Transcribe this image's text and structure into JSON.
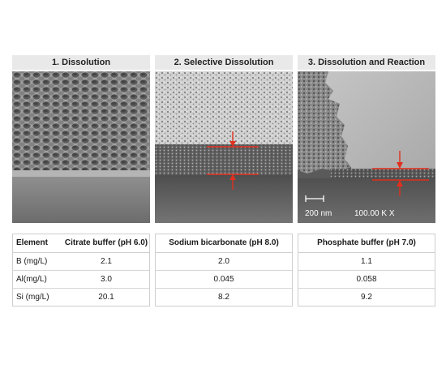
{
  "panels": [
    {
      "title": "1. Dissolution"
    },
    {
      "title": "2. Selective Dissolution"
    },
    {
      "title": "3. Dissolution and Reaction"
    }
  ],
  "scale": {
    "bar_label": "200 nm",
    "magnification": "100.00 K X"
  },
  "table": {
    "element_header": "Element",
    "columns": [
      {
        "header": "Citrate buffer (pH 6.0)",
        "values": [
          "2.1",
          "3.0",
          "20.1"
        ]
      },
      {
        "header": "Sodium bicarbonate (pH 8.0)",
        "values": [
          "2.0",
          "0.045",
          "8.2"
        ]
      },
      {
        "header": "Phosphate buffer (pH 7.0)",
        "values": [
          "1.1",
          "0.058",
          "9.2"
        ]
      }
    ],
    "rows": [
      "B (mg/L)",
      "Al(mg/L)",
      "Si (mg/L)"
    ]
  },
  "colors": {
    "accent_red": "#e0301e"
  }
}
